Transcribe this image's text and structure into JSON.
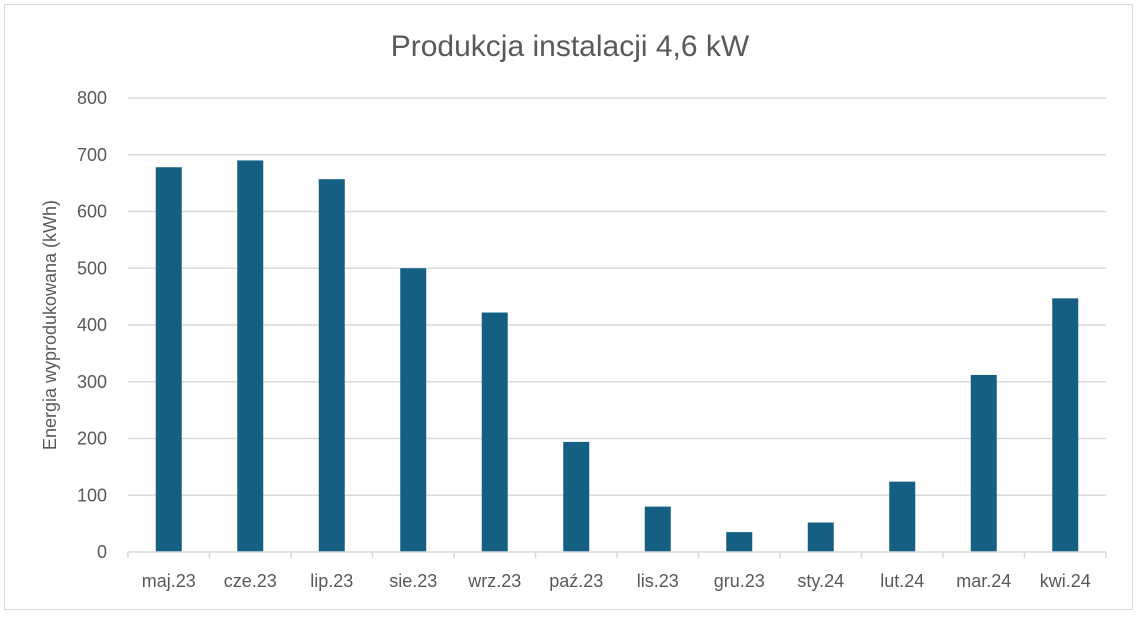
{
  "chart_data": {
    "type": "bar",
    "title": "Produkcja instalacji 4,6 kW",
    "xlabel": "",
    "ylabel": "Energia wyprodukowana (kWh)",
    "categories": [
      "maj.23",
      "cze.23",
      "lip.23",
      "sie.23",
      "wrz.23",
      "paź.23",
      "lis.23",
      "gru.23",
      "sty.24",
      "lut.24",
      "mar.24",
      "kwi.24"
    ],
    "values": [
      678,
      690,
      657,
      500,
      422,
      194,
      80,
      35,
      52,
      124,
      312,
      447
    ],
    "ylim": [
      0,
      800
    ],
    "yticks": [
      0,
      100,
      200,
      300,
      400,
      500,
      600,
      700,
      800
    ],
    "grid": true,
    "bar_color": "#155f82",
    "gridline_color": "#d9d9d9"
  }
}
